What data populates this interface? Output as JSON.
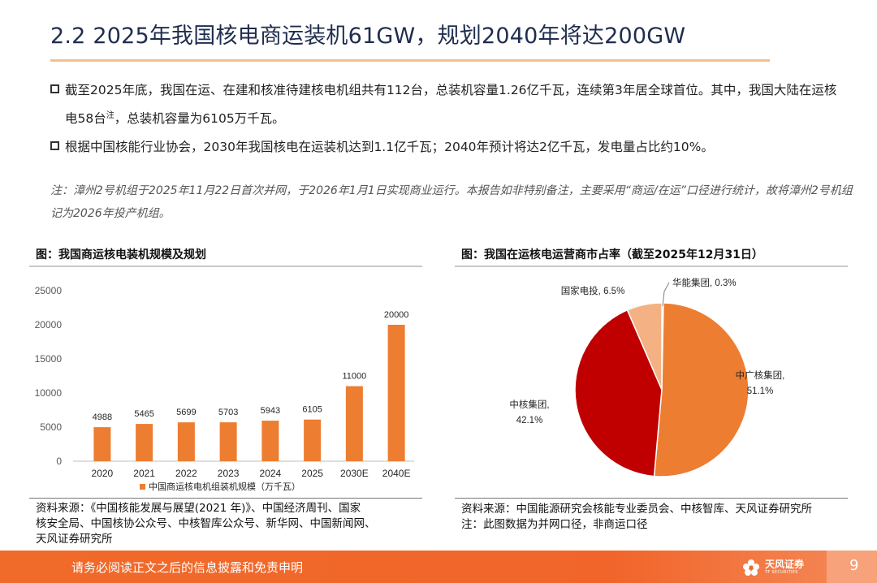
{
  "title": "2.2 2025年我国核电商运装机61GW，规划2040年将达200GW",
  "bullets": [
    {
      "text_a": "截至2025年底，我国在运、在建和核准待建核电机组共有112台，总装机容量1.26亿千瓦，连续第3年居全球首位。其中，我国大陆在运核电58台",
      "sup": "注",
      "text_b": "，总装机容量为6105万千瓦。"
    },
    {
      "text": "根据中国核能行业协会，2030年我国核电在运装机达到1.1亿千瓦；2040年预计将达2亿千瓦，发电量占比约10%。"
    }
  ],
  "note": "注：漳州2号机组于2025年11月22日首次并网，于2026年1月1日实现商业运行。本报告如非特别备注，主要采用“商运/在运”口径进行统计，故将漳州2号机组记为2026年投产机组。",
  "left_panel": {
    "title": "图：我国商运核电装机规模及规划",
    "source": [
      "资料来源：《中国核能发展与展望(2021 年)》、中国经济周刊、国家",
      "核安全局、中国核协公众号、中核智库公众号、新华网、中国新闻网、",
      "天风证券研究所"
    ]
  },
  "right_panel": {
    "title": "图：我国在运核电运营商市占率（截至2025年12月31日）",
    "source": [
      "资料来源：中国能源研究会核能专业委员会、中核智库、天风证券研究所",
      "注：此图数据为并网口径，非商运口径"
    ]
  },
  "chart_data": [
    {
      "type": "bar",
      "categories": [
        "2020",
        "2021",
        "2022",
        "2023",
        "2024",
        "2025",
        "2030E",
        "2040E"
      ],
      "series": [
        {
          "name": "中国商运核电机组装机规模（万千瓦）",
          "values": [
            4988,
            5465,
            5699,
            5703,
            5943,
            6105,
            11000,
            20000
          ]
        }
      ],
      "ylim": [
        0,
        25000
      ],
      "yticks": [
        "25000",
        "20000",
        "15000",
        "10000",
        "5000",
        "0"
      ],
      "legend": "bottom",
      "grid": false,
      "color": "#ed7d31"
    },
    {
      "type": "pie",
      "slices": [
        {
          "name": "华能集团",
          "value": 0.3,
          "label_name": "华能集团,",
          "label_pct": "0.3%",
          "color": "#a6a6a6"
        },
        {
          "name": "中广核集团",
          "value": 51.1,
          "label_name": "中广核集团,",
          "label_pct": "51.1%",
          "color": "#ed7d31"
        },
        {
          "name": "中核集团",
          "value": 42.1,
          "label_name": "中核集团,",
          "label_pct": "42.1%",
          "color": "#c00000"
        },
        {
          "name": "国家电投",
          "value": 6.5,
          "label_name": "国家电投,",
          "label_pct": "6.5%",
          "color": "#f4b183"
        }
      ]
    }
  ],
  "footer": {
    "disclaimer": "请务必阅读正文之后的信息披露和免责申明",
    "logo_cn": "天风证券",
    "logo_en": "TF SECURITIES",
    "page": "9"
  },
  "colors": {
    "accent": "#f06a2a",
    "title": "#1f2d4e",
    "rule": "#f2c08f"
  }
}
